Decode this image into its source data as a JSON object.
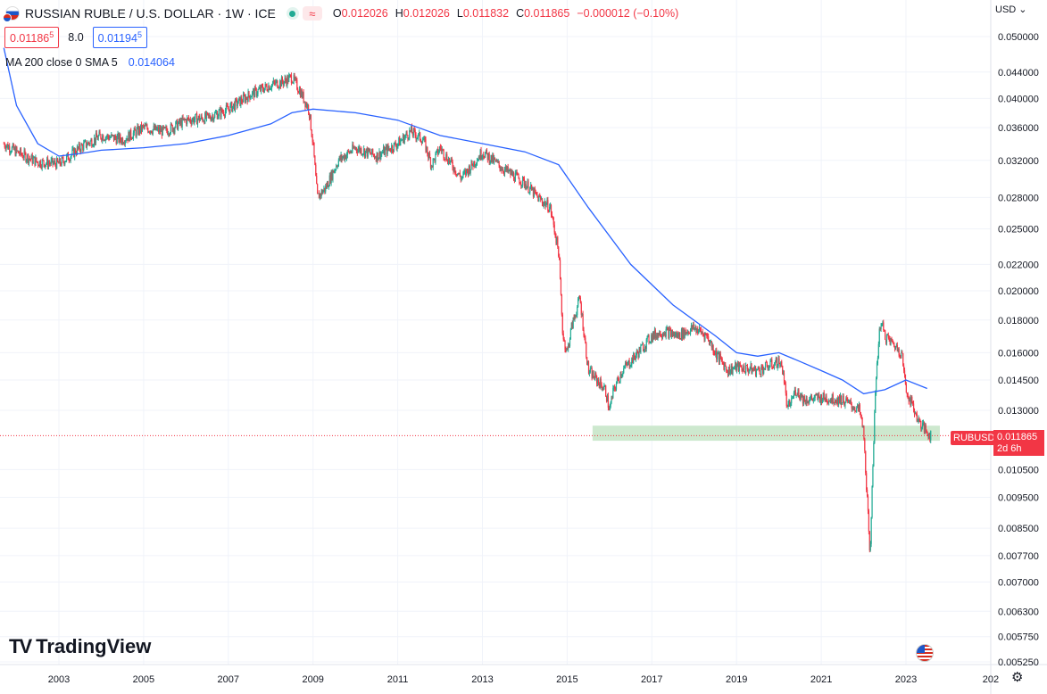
{
  "header": {
    "symbol": "RUSSIAN RUBLE / U.S. DOLLAR · 1W · ICE",
    "ohlc": [
      {
        "label": "O",
        "value": "0.012026"
      },
      {
        "label": "H",
        "value": "0.012026"
      },
      {
        "label": "L",
        "value": "0.011832"
      },
      {
        "label": "C",
        "value": "0.011865"
      }
    ],
    "change": "−0.000012 (−0.10%)",
    "sell_price": "0.01186",
    "sell_price_sup": "5",
    "spread": "8.0",
    "buy_price": "0.01194",
    "buy_price_sup": "5",
    "currency": "USD"
  },
  "indicator": {
    "label": "MA 200 close 0 SMA 5",
    "value": "0.014064"
  },
  "price_tag": {
    "symbol": "RUBUSD",
    "price": "0.011865",
    "countdown": "2d 6h"
  },
  "brand": {
    "name": "TradingView"
  },
  "colors": {
    "up": "#22ab94",
    "down": "#f23645",
    "ma": "#2962ff",
    "support_zone": "#c8e6c9",
    "grid": "#f0f3fa"
  },
  "chart_data": {
    "type": "candlestick",
    "title": "RUSSIAN RUBLE / U.S. DOLLAR · 1W · ICE",
    "y_scale": "log",
    "y_ticks": [
      "0.050000",
      "0.044000",
      "0.040000",
      "0.036000",
      "0.032000",
      "0.028000",
      "0.025000",
      "0.022000",
      "0.020000",
      "0.018000",
      "0.016000",
      "0.014500",
      "0.013000",
      "0.010500",
      "0.009500",
      "0.008500",
      "0.007700",
      "0.007000",
      "0.006300",
      "0.005750",
      "0.005250"
    ],
    "x_ticks": [
      "2003",
      "2005",
      "2007",
      "2009",
      "2011",
      "2013",
      "2015",
      "2017",
      "2019",
      "2021",
      "2023",
      "202"
    ],
    "x_range": [
      2001.7,
      2024.9
    ],
    "price_series": {
      "name": "RUBUSD",
      "x": [
        2001.7,
        2002.0,
        2002.5,
        2003.0,
        2003.5,
        2004.0,
        2004.5,
        2005.0,
        2005.5,
        2006.0,
        2006.5,
        2007.0,
        2007.5,
        2008.0,
        2008.3,
        2008.5,
        2008.7,
        2008.9,
        2009.0,
        2009.1,
        2009.3,
        2009.6,
        2010.0,
        2010.5,
        2011.0,
        2011.3,
        2011.6,
        2011.8,
        2012.0,
        2012.5,
        2013.0,
        2013.5,
        2014.0,
        2014.3,
        2014.6,
        2014.8,
        2014.9,
        2015.0,
        2015.1,
        2015.3,
        2015.5,
        2015.7,
        2015.9,
        2016.0,
        2016.1,
        2016.3,
        2016.5,
        2017.0,
        2017.3,
        2017.6,
        2018.0,
        2018.3,
        2018.5,
        2018.8,
        2019.0,
        2019.5,
        2020.0,
        2020.1,
        2020.2,
        2020.4,
        2020.6,
        2021.0,
        2021.5,
        2021.9,
        2022.0,
        2022.1,
        2022.15,
        2022.2,
        2022.3,
        2022.4,
        2022.5,
        2022.7,
        2022.9,
        2023.0,
        2023.1,
        2023.3,
        2023.5,
        2023.6
      ],
      "close": [
        0.034,
        0.033,
        0.0318,
        0.0316,
        0.0335,
        0.035,
        0.0345,
        0.036,
        0.0355,
        0.037,
        0.0373,
        0.0385,
        0.0405,
        0.042,
        0.0425,
        0.0432,
        0.041,
        0.0385,
        0.034,
        0.028,
        0.029,
        0.032,
        0.0335,
        0.0325,
        0.034,
        0.0355,
        0.0345,
        0.0315,
        0.0335,
        0.03,
        0.033,
        0.031,
        0.0295,
        0.028,
        0.027,
        0.023,
        0.017,
        0.016,
        0.0175,
        0.0195,
        0.015,
        0.0145,
        0.014,
        0.013,
        0.014,
        0.015,
        0.0155,
        0.017,
        0.0173,
        0.017,
        0.0175,
        0.017,
        0.016,
        0.015,
        0.0152,
        0.015,
        0.0155,
        0.015,
        0.013,
        0.014,
        0.0135,
        0.0136,
        0.0135,
        0.013,
        0.012,
        0.009,
        0.0075,
        0.01,
        0.015,
        0.018,
        0.017,
        0.0165,
        0.016,
        0.014,
        0.0135,
        0.0125,
        0.012,
        0.011865
      ]
    },
    "ma_series": {
      "name": "MA 200 close 0 SMA 5",
      "x": [
        2001.7,
        2002.0,
        2002.5,
        2003.0,
        2003.5,
        2004.0,
        2005.0,
        2006.0,
        2007.0,
        2008.0,
        2008.5,
        2009.0,
        2010.0,
        2011.0,
        2012.0,
        2013.0,
        2014.0,
        2014.8,
        2015.5,
        2016.5,
        2017.5,
        2018.5,
        2019.0,
        2019.5,
        2020.0,
        2020.5,
        2021.0,
        2021.5,
        2022.0,
        2022.5,
        2023.0,
        2023.5
      ],
      "values": [
        0.048,
        0.039,
        0.034,
        0.0325,
        0.0328,
        0.0332,
        0.0335,
        0.034,
        0.035,
        0.0365,
        0.038,
        0.0385,
        0.038,
        0.037,
        0.035,
        0.034,
        0.033,
        0.0315,
        0.027,
        0.022,
        0.019,
        0.017,
        0.016,
        0.0158,
        0.016,
        0.0155,
        0.015,
        0.0145,
        0.0138,
        0.014,
        0.0145,
        0.014064
      ]
    },
    "support_zone": {
      "y_low": 0.01165,
      "y_high": 0.0123,
      "x_start": 2015.6,
      "x_end": 2023.8
    },
    "last_price": 0.011865,
    "grid": true
  }
}
